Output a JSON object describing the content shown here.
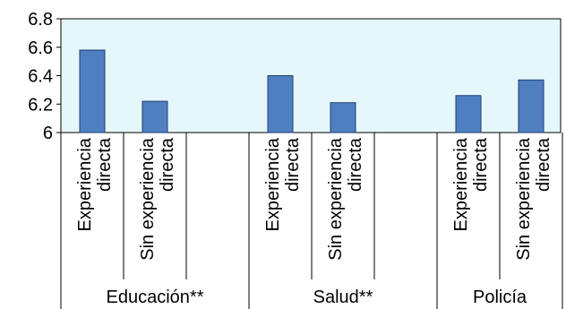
{
  "chart_data": {
    "type": "bar",
    "title": "",
    "xlabel": "",
    "ylabel": "",
    "ylim": [
      6,
      6.8
    ],
    "yticks": [
      "6",
      "6.2",
      "6.4",
      "6.6",
      "6.8"
    ],
    "ytick_values": [
      6,
      6.2,
      6.4,
      6.6,
      6.8
    ],
    "grid": false,
    "plot_background": "#e6f7fb",
    "bar_color": "#4f7fc0",
    "bar_edge_color": "#1f3f6f",
    "groups": [
      {
        "name": "Educación**",
        "bars": [
          {
            "label_line1": "Experiencia",
            "label_line2": "directa",
            "value": 6.58
          },
          {
            "label_line1": "Sin experiencia",
            "label_line2": "directa",
            "value": 6.22
          },
          {
            "label_line1": "",
            "label_line2": "",
            "value": null
          }
        ]
      },
      {
        "name": "Salud**",
        "bars": [
          {
            "label_line1": "Experiencia",
            "label_line2": "directa",
            "value": 6.4
          },
          {
            "label_line1": "Sin experiencia",
            "label_line2": "directa",
            "value": 6.21
          },
          {
            "label_line1": "",
            "label_line2": "",
            "value": null
          }
        ]
      },
      {
        "name": "Policía",
        "bars": [
          {
            "label_line1": "Experiencia",
            "label_line2": "directa",
            "value": 6.26
          },
          {
            "label_line1": "Sin experiencia",
            "label_line2": "directa",
            "value": 6.37
          }
        ]
      }
    ]
  }
}
